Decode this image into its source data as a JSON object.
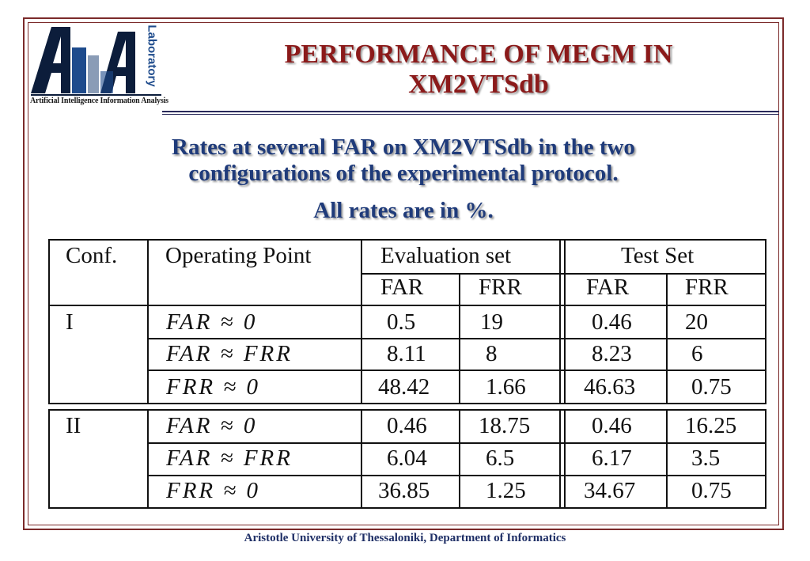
{
  "logo": {
    "letters": "AIIA",
    "side_text": "Laboratory",
    "caption": "Artificial Intelligence Information Analysis"
  },
  "title_line1": "PERFORMANCE OF MEGM IN",
  "title_line2": "XM2VTSdb",
  "subtitle_line1": "Rates at several FAR on XM2VTSdb in the two",
  "subtitle_line2": "configurations of the experimental protocol.",
  "subtitle_line3": "All rates are in %.",
  "table": {
    "headers": {
      "conf": "Conf.",
      "operating_point": "Operating Point",
      "evaluation_set": "Evaluation set",
      "test_set": "Test Set",
      "far": "FAR",
      "frr": "FRR"
    },
    "groups": [
      {
        "conf": "I",
        "rows": [
          {
            "op": "FAR ≈ 0",
            "eval_far": "0.5",
            "eval_frr": "19",
            "test_far": "0.46",
            "test_frr": "20"
          },
          {
            "op": "FAR ≈ FRR",
            "eval_far": "8.11",
            "eval_frr": "8",
            "test_far": "8.23",
            "test_frr": "6"
          },
          {
            "op": "FRR ≈ 0",
            "eval_far": "48.42",
            "eval_frr": "1.66",
            "test_far": "46.63",
            "test_frr": "0.75"
          }
        ]
      },
      {
        "conf": "II",
        "rows": [
          {
            "op": "FAR ≈ 0",
            "eval_far": "0.46",
            "eval_frr": "18.75",
            "test_far": "0.46",
            "test_frr": "16.25"
          },
          {
            "op": "FAR ≈ FRR",
            "eval_far": "6.04",
            "eval_frr": "6.5",
            "test_far": "6.17",
            "test_frr": "3.5"
          },
          {
            "op": "FRR ≈ 0",
            "eval_far": "36.85",
            "eval_frr": "1.25",
            "test_far": "34.67",
            "test_frr": "0.75"
          }
        ]
      }
    ]
  },
  "footer": "Aristotle University of Thessaloniki, Department of Informatics",
  "colors": {
    "title": "#8b1a1a",
    "subtitle": "#1f3b7a",
    "frame": "#7b2a2a",
    "footer": "#1f2f66"
  }
}
